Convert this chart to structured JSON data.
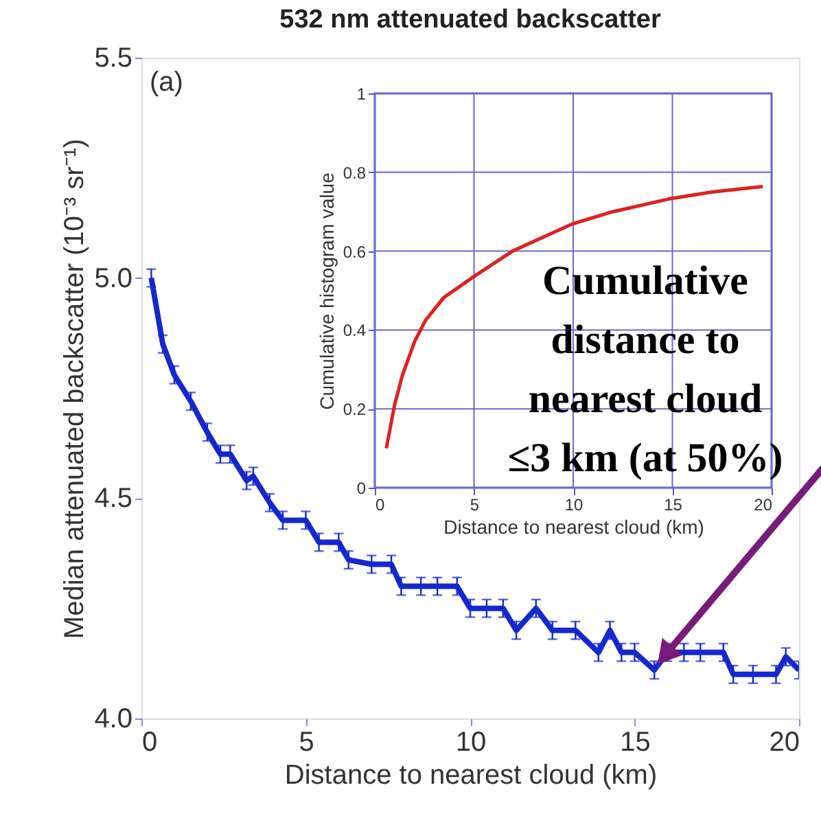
{
  "chart_data": [
    {
      "type": "line",
      "title": "532 nm attenuated backscatter",
      "xlabel": "Distance to nearest cloud (km)",
      "ylabel": "Median attenuated backscatter (10⁻³ sr⁻¹)",
      "x": [
        0.3,
        0.65,
        1.0,
        1.5,
        2.0,
        2.4,
        2.7,
        3.2,
        3.4,
        3.9,
        4.3,
        5.0,
        5.4,
        6.0,
        6.3,
        7.0,
        7.6,
        7.9,
        8.5,
        9.0,
        9.6,
        10.0,
        10.5,
        11.0,
        11.4,
        12.0,
        12.5,
        13.2,
        13.9,
        14.25,
        14.6,
        15.0,
        15.6,
        16.0,
        16.5,
        17.0,
        17.7,
        18.0,
        18.6,
        19.3,
        19.6,
        20.0
      ],
      "values": [
        5.0,
        4.85,
        4.78,
        4.72,
        4.65,
        4.6,
        4.6,
        4.54,
        4.55,
        4.49,
        4.45,
        4.45,
        4.4,
        4.4,
        4.36,
        4.35,
        4.35,
        4.3,
        4.3,
        4.3,
        4.3,
        4.25,
        4.25,
        4.25,
        4.2,
        4.25,
        4.2,
        4.2,
        4.15,
        4.2,
        4.15,
        4.15,
        4.11,
        4.15,
        4.15,
        4.15,
        4.15,
        4.1,
        4.1,
        4.1,
        4.14,
        4.11
      ],
      "errors": [
        0.02,
        0.02,
        0.02,
        0.02,
        0.02,
        0.02,
        0.02,
        0.02,
        0.02,
        0.02,
        0.02,
        0.02,
        0.02,
        0.02,
        0.02,
        0.02,
        0.02,
        0.02,
        0.02,
        0.02,
        0.02,
        0.02,
        0.02,
        0.02,
        0.02,
        0.02,
        0.02,
        0.02,
        0.02,
        0.02,
        0.02,
        0.02,
        0.02,
        0.02,
        0.02,
        0.02,
        0.02,
        0.02,
        0.02,
        0.02,
        0.02,
        0.02
      ],
      "color": "#1428d0",
      "xlim": [
        0,
        20
      ],
      "ylim": [
        4.0,
        5.5
      ],
      "xticks": [
        0,
        5,
        10,
        15,
        20
      ],
      "yticks": [
        {
          "value": 4.0,
          "label": "4.0"
        },
        {
          "value": 4.5,
          "label": "4.5"
        },
        {
          "value": 5.0,
          "label": "5.0"
        },
        {
          "value": 5.5,
          "label": "5.5"
        }
      ],
      "grid": false,
      "annotations": [
        "(a)",
        {
          "text": "Cumulative distance to nearest cloud ≤3 km (at 50%)",
          "x": 16,
          "y": 4.15
        }
      ]
    },
    {
      "type": "line",
      "xlabel": "Distance to nearest cloud (km)",
      "ylabel": "Cumulative histogram value",
      "x": [
        0.58,
        1.0,
        1.39,
        2.0,
        2.55,
        3.47,
        4.98,
        6.94,
        9.96,
        12.0,
        14.8,
        17.0,
        19.56
      ],
      "values": [
        0.1,
        0.21,
        0.285,
        0.37,
        0.424,
        0.482,
        0.535,
        0.6,
        0.669,
        0.7,
        0.732,
        0.75,
        0.764
      ],
      "color": "#e02020",
      "xlim": [
        0,
        20
      ],
      "ylim": [
        0,
        1
      ],
      "xticks": [
        0,
        5,
        10,
        15,
        20
      ],
      "yticks": [
        0,
        0.2,
        0.4,
        0.6,
        0.8,
        1
      ],
      "grid": true
    }
  ]
}
